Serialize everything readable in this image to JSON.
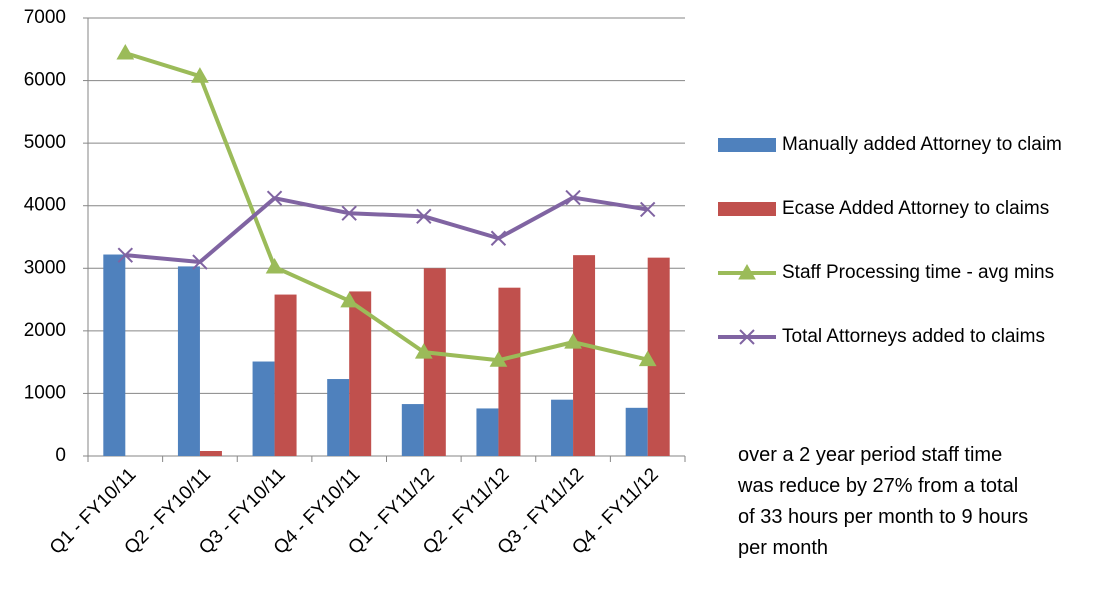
{
  "chart_data": {
    "type": "bar-line",
    "categories": [
      "Q1 - FY10/11",
      "Q2 - FY10/11",
      "Q3 - FY10/11",
      "Q4 - FY10/11",
      "Q1 - FY11/12",
      "Q2 - FY11/12",
      "Q3 - FY11/12",
      "Q4 - FY11/12"
    ],
    "series": [
      {
        "name": "Manually added Attorney to claim",
        "type": "bar",
        "color": "#4f81bd",
        "values": [
          3220,
          3030,
          1510,
          1230,
          830,
          760,
          900,
          770
        ]
      },
      {
        "name": "Ecase Added Attorney to claims",
        "type": "bar",
        "color": "#c0504d",
        "values": [
          0,
          80,
          2580,
          2630,
          3000,
          2690,
          3210,
          3170
        ]
      },
      {
        "name": "Staff Processing time - avg mins",
        "type": "line",
        "marker": "triangle",
        "color": "#9bbb59",
        "values": [
          6440,
          6070,
          3020,
          2480,
          1660,
          1530,
          1820,
          1540
        ]
      },
      {
        "name": "Total Attorneys added to claims",
        "type": "line",
        "marker": "x",
        "color": "#8064a2",
        "values": [
          3210,
          3100,
          4120,
          3880,
          3830,
          3480,
          4130,
          3940
        ]
      }
    ],
    "ylim": [
      0,
      7000
    ],
    "yticks": [
      0,
      1000,
      2000,
      3000,
      4000,
      5000,
      6000,
      7000
    ],
    "grid": true,
    "legend": "right",
    "annotation": "over a 2 year period staff time was reduce by 27% from a total of 33 hours per month to 9 hours per month"
  }
}
